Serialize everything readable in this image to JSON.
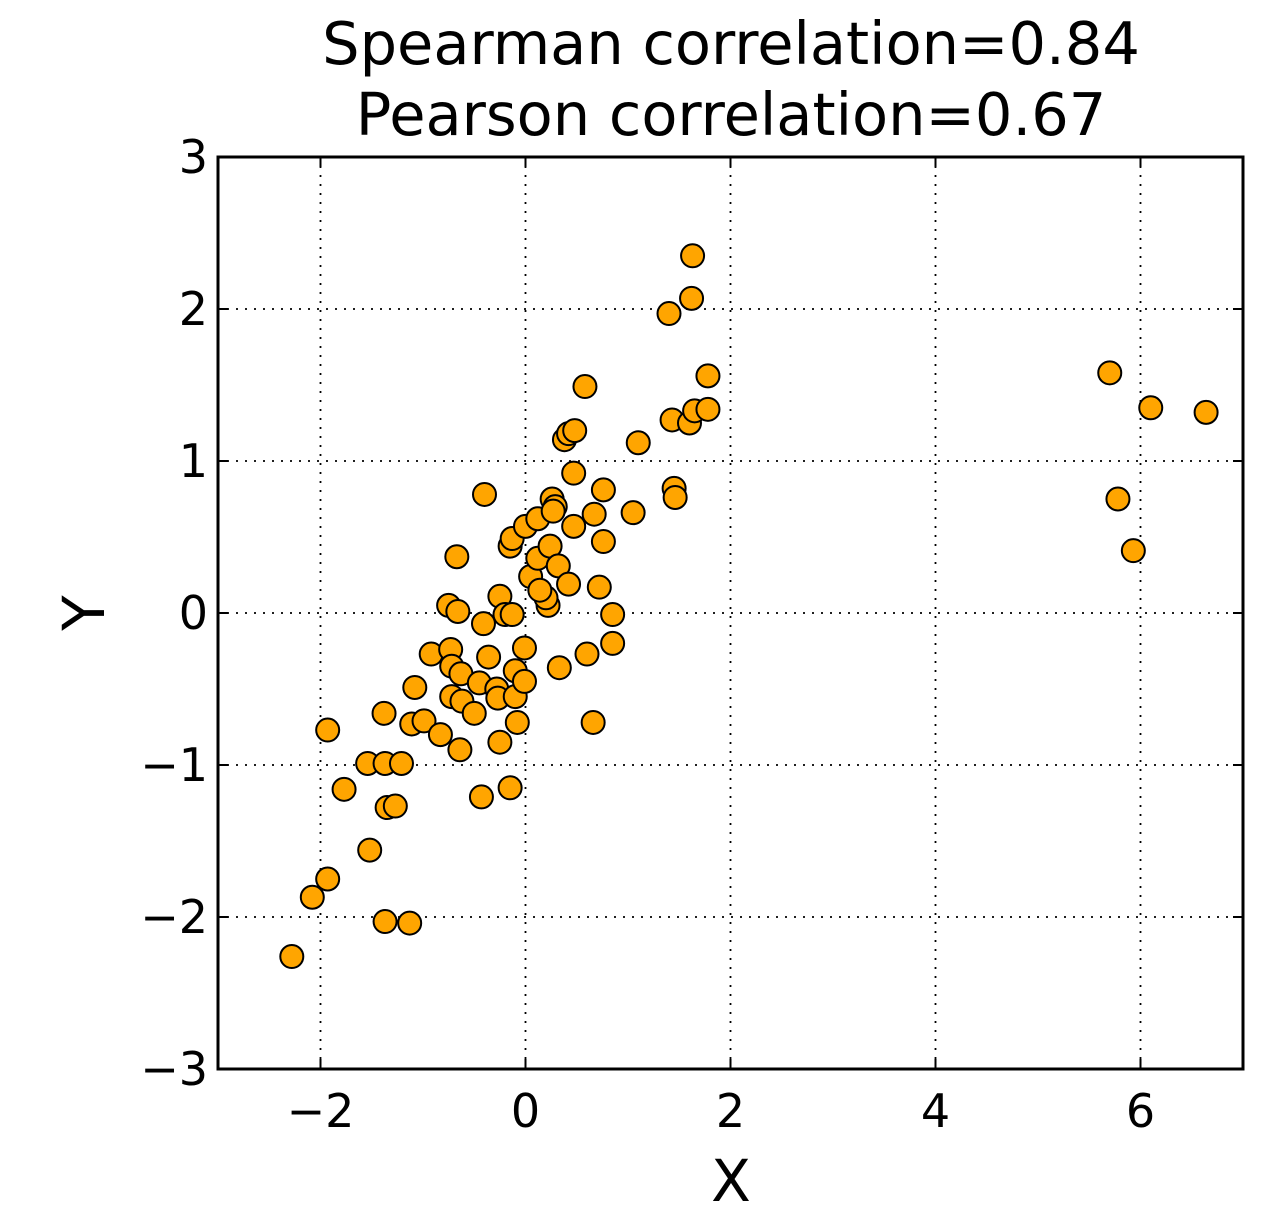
{
  "chart_data": {
    "type": "scatter",
    "title_lines": [
      "Spearman correlation=0.84",
      "Pearson correlation=0.67"
    ],
    "xlabel": "X",
    "ylabel": "Y",
    "xlim": [
      -3,
      7
    ],
    "ylim": [
      -3,
      3
    ],
    "x_ticks": [
      -2,
      0,
      2,
      4,
      6
    ],
    "x_tick_labels": [
      "−2",
      "0",
      "2",
      "4",
      "6"
    ],
    "y_ticks": [
      -3,
      -2,
      -1,
      0,
      1,
      2,
      3
    ],
    "y_tick_labels": [
      "−3",
      "−2",
      "−1",
      "0",
      "1",
      "2",
      "3"
    ],
    "grid": true,
    "marker_color": "#FFA500",
    "marker_edge_color": "#000000",
    "points": [
      [
        -2.28,
        -2.26
      ],
      [
        -2.08,
        -1.87
      ],
      [
        -1.93,
        -1.75
      ],
      [
        -1.93,
        -0.77
      ],
      [
        -1.77,
        -1.16
      ],
      [
        -1.52,
        -1.56
      ],
      [
        -1.54,
        -0.99
      ],
      [
        -1.37,
        -0.99
      ],
      [
        -1.21,
        -0.99
      ],
      [
        -1.37,
        -2.03
      ],
      [
        -1.13,
        -2.04
      ],
      [
        -1.35,
        -1.28
      ],
      [
        -1.27,
        -1.27
      ],
      [
        -1.38,
        -0.66
      ],
      [
        -1.08,
        -0.49
      ],
      [
        -1.11,
        -0.73
      ],
      [
        -0.99,
        -0.71
      ],
      [
        -0.92,
        -0.27
      ],
      [
        -0.83,
        -0.8
      ],
      [
        -0.72,
        -0.55
      ],
      [
        -0.75,
        0.05
      ],
      [
        -0.66,
        0.01
      ],
      [
        -0.67,
        0.37
      ],
      [
        -0.73,
        -0.24
      ],
      [
        -0.72,
        -0.35
      ],
      [
        -0.63,
        -0.4
      ],
      [
        -0.64,
        -0.9
      ],
      [
        -0.62,
        -0.58
      ],
      [
        -0.5,
        -0.66
      ],
      [
        -0.45,
        -0.46
      ],
      [
        -0.41,
        -0.07
      ],
      [
        -0.36,
        -0.29
      ],
      [
        -0.4,
        0.78
      ],
      [
        -0.43,
        -1.21
      ],
      [
        -0.25,
        0.11
      ],
      [
        -0.28,
        -0.5
      ],
      [
        -0.27,
        -0.56
      ],
      [
        -0.25,
        -0.85
      ],
      [
        -0.2,
        -0.01
      ],
      [
        -0.13,
        -0.01
      ],
      [
        -0.15,
        -1.15
      ],
      [
        -0.1,
        -0.38
      ],
      [
        -0.1,
        -0.55
      ],
      [
        -0.08,
        -0.72
      ],
      [
        -0.01,
        -0.23
      ],
      [
        -0.01,
        -0.45
      ],
      [
        -0.15,
        0.44
      ],
      [
        -0.13,
        0.49
      ],
      [
        0.0,
        0.57
      ],
      [
        0.05,
        0.24
      ],
      [
        0.12,
        0.36
      ],
      [
        0.12,
        0.62
      ],
      [
        0.22,
        0.05
      ],
      [
        0.2,
        0.1
      ],
      [
        0.14,
        0.15
      ],
      [
        0.24,
        0.44
      ],
      [
        0.26,
        0.75
      ],
      [
        0.29,
        0.7
      ],
      [
        0.32,
        0.31
      ],
      [
        0.27,
        0.67
      ],
      [
        0.33,
        -0.36
      ],
      [
        0.38,
        1.14
      ],
      [
        0.42,
        1.18
      ],
      [
        0.48,
        1.2
      ],
      [
        0.47,
        0.92
      ],
      [
        0.47,
        0.57
      ],
      [
        0.42,
        0.19
      ],
      [
        0.58,
        1.49
      ],
      [
        0.6,
        -0.27
      ],
      [
        0.67,
        0.65
      ],
      [
        0.66,
        -0.72
      ],
      [
        0.72,
        0.17
      ],
      [
        0.76,
        0.47
      ],
      [
        0.76,
        0.81
      ],
      [
        0.85,
        -0.01
      ],
      [
        0.85,
        -0.2
      ],
      [
        1.05,
        0.66
      ],
      [
        1.1,
        1.12
      ],
      [
        1.4,
        1.97
      ],
      [
        1.43,
        1.27
      ],
      [
        1.45,
        0.82
      ],
      [
        1.46,
        0.76
      ],
      [
        1.6,
        1.25
      ],
      [
        1.62,
        2.07
      ],
      [
        1.63,
        2.35
      ],
      [
        1.65,
        1.33
      ],
      [
        1.78,
        1.34
      ],
      [
        1.78,
        1.56
      ],
      [
        5.7,
        1.58
      ],
      [
        5.78,
        0.75
      ],
      [
        5.93,
        0.41
      ],
      [
        6.1,
        1.35
      ],
      [
        6.64,
        1.32
      ]
    ]
  }
}
